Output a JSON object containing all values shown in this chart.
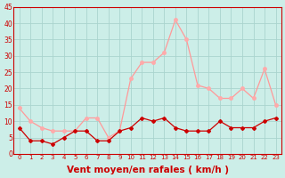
{
  "xlabel": "Vent moyen/en rafales ( km/h )",
  "hours": [
    0,
    1,
    2,
    3,
    4,
    5,
    6,
    7,
    8,
    9,
    10,
    11,
    12,
    13,
    14,
    15,
    16,
    17,
    18,
    19,
    20,
    21,
    22,
    23
  ],
  "vent_moyen": [
    8,
    4,
    4,
    3,
    5,
    7,
    7,
    4,
    4,
    7,
    8,
    11,
    10,
    11,
    8,
    7,
    7,
    7,
    10,
    8,
    8,
    8,
    10,
    11
  ],
  "rafales": [
    14,
    10,
    8,
    7,
    7,
    7,
    11,
    11,
    5,
    7,
    23,
    28,
    28,
    31,
    41,
    35,
    21,
    20,
    17,
    17,
    20,
    17,
    26,
    15
  ],
  "bg_color": "#cceee8",
  "grid_color": "#aad4ce",
  "line_color_moyen": "#cc0000",
  "line_color_rafales": "#ff9999",
  "marker_color_moyen": "#cc0000",
  "marker_color_rafales": "#ffaaaa",
  "ylim": [
    0,
    45
  ],
  "yticks": [
    0,
    5,
    10,
    15,
    20,
    25,
    30,
    35,
    40,
    45
  ],
  "tick_label_color": "#cc0000",
  "axis_label_color": "#cc0000",
  "axis_label_fontsize": 7.5
}
